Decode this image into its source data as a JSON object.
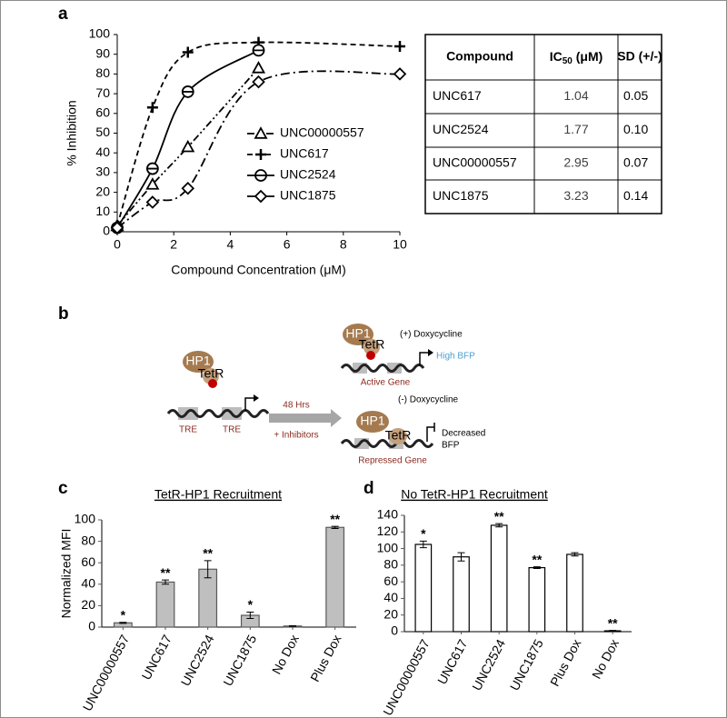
{
  "chart_data": [
    {
      "type": "line",
      "label": "a",
      "x_label": "Compound Concentration (μM)",
      "y_label": "% Inhibition",
      "x": [
        0,
        1.25,
        2.5,
        5,
        10
      ],
      "xlim": [
        0,
        10
      ],
      "xticks": [
        0,
        2,
        4,
        6,
        8,
        10
      ],
      "ylim": [
        0,
        100
      ],
      "yticks": [
        0,
        10,
        20,
        30,
        40,
        50,
        60,
        70,
        80,
        90,
        100
      ],
      "grid": false,
      "legend": "center",
      "series": [
        {
          "name": "UNC00000557",
          "color": "#000000",
          "line_style": "dash-dot-dot",
          "marker": "triangle",
          "values": [
            3,
            24,
            43,
            83,
            null
          ]
        },
        {
          "name": "UNC617",
          "color": "#000000",
          "line_style": "dashed",
          "marker": "plus",
          "values": [
            3,
            63,
            91,
            96,
            94
          ]
        },
        {
          "name": "UNC2524",
          "color": "#000000",
          "line_style": "solid",
          "marker": "circle",
          "values": [
            2,
            32,
            71,
            92,
            null
          ]
        },
        {
          "name": "UNC1875",
          "color": "#000000",
          "line_style": "dash-dot",
          "marker": "diamond",
          "values": [
            2,
            15,
            22,
            76,
            80
          ]
        }
      ]
    },
    {
      "type": "bar",
      "label": "c",
      "title": "TetR-HP1 Recruitment",
      "y_label": "Normalized MFI",
      "categories": [
        "UNC00000557",
        "UNC617",
        "UNC2524",
        "UNC1875",
        "No Dox",
        "Plus Dox"
      ],
      "values": [
        4,
        42,
        54,
        11,
        1,
        93
      ],
      "errors": [
        0.5,
        2,
        8,
        3,
        0.3,
        1
      ],
      "annotations": [
        "*",
        "**",
        "**",
        "*",
        null,
        "**"
      ],
      "color": "#bfbfbf",
      "edge_color": "#595959",
      "ylim": [
        0,
        100
      ],
      "yticks": [
        0,
        20,
        40,
        60,
        80,
        100
      ]
    },
    {
      "type": "bar",
      "label": "d",
      "title": "No TetR-HP1 Recruitment",
      "categories": [
        "UNC00000557",
        "UNC617",
        "UNC2524",
        "UNC1875",
        "Plus Dox",
        "No Dox"
      ],
      "values": [
        105,
        90,
        128,
        77,
        93,
        1
      ],
      "errors": [
        4,
        5,
        2,
        1,
        2,
        0.5
      ],
      "annotations": [
        "*",
        null,
        "**",
        "**",
        null,
        "**"
      ],
      "color": "#ffffff",
      "edge_color": "#000000",
      "ylim": [
        0,
        140
      ],
      "yticks": [
        0,
        20,
        40,
        60,
        80,
        100,
        120,
        140
      ]
    }
  ],
  "table": {
    "header": [
      "Compound",
      [
        "IC",
        "50",
        " (μM)"
      ],
      "SD (+/-)"
    ],
    "rows": [
      [
        "UNC617",
        "1.04",
        "0.05"
      ],
      [
        "UNC2524",
        "1.77",
        "0.10"
      ],
      [
        "UNC00000557",
        "2.95",
        "0.07"
      ],
      [
        "UNC1875",
        "3.23",
        "0.14"
      ]
    ]
  },
  "diagram": {
    "label": "b",
    "hp1": "HP1",
    "tetr": "TetR",
    "tre": [
      "TRE",
      "TRE"
    ],
    "arrow": [
      "48 Hrs",
      "+ Inhibitors"
    ],
    "plus_dox": "(+) Doxycycline",
    "high_bfp": "High BFP",
    "active_gene": "Active Gene",
    "minus_dox": "(-) Doxycycline",
    "decreased_bfp": [
      "Decreased",
      "BFP"
    ],
    "repressed_gene": "Repressed Gene"
  }
}
